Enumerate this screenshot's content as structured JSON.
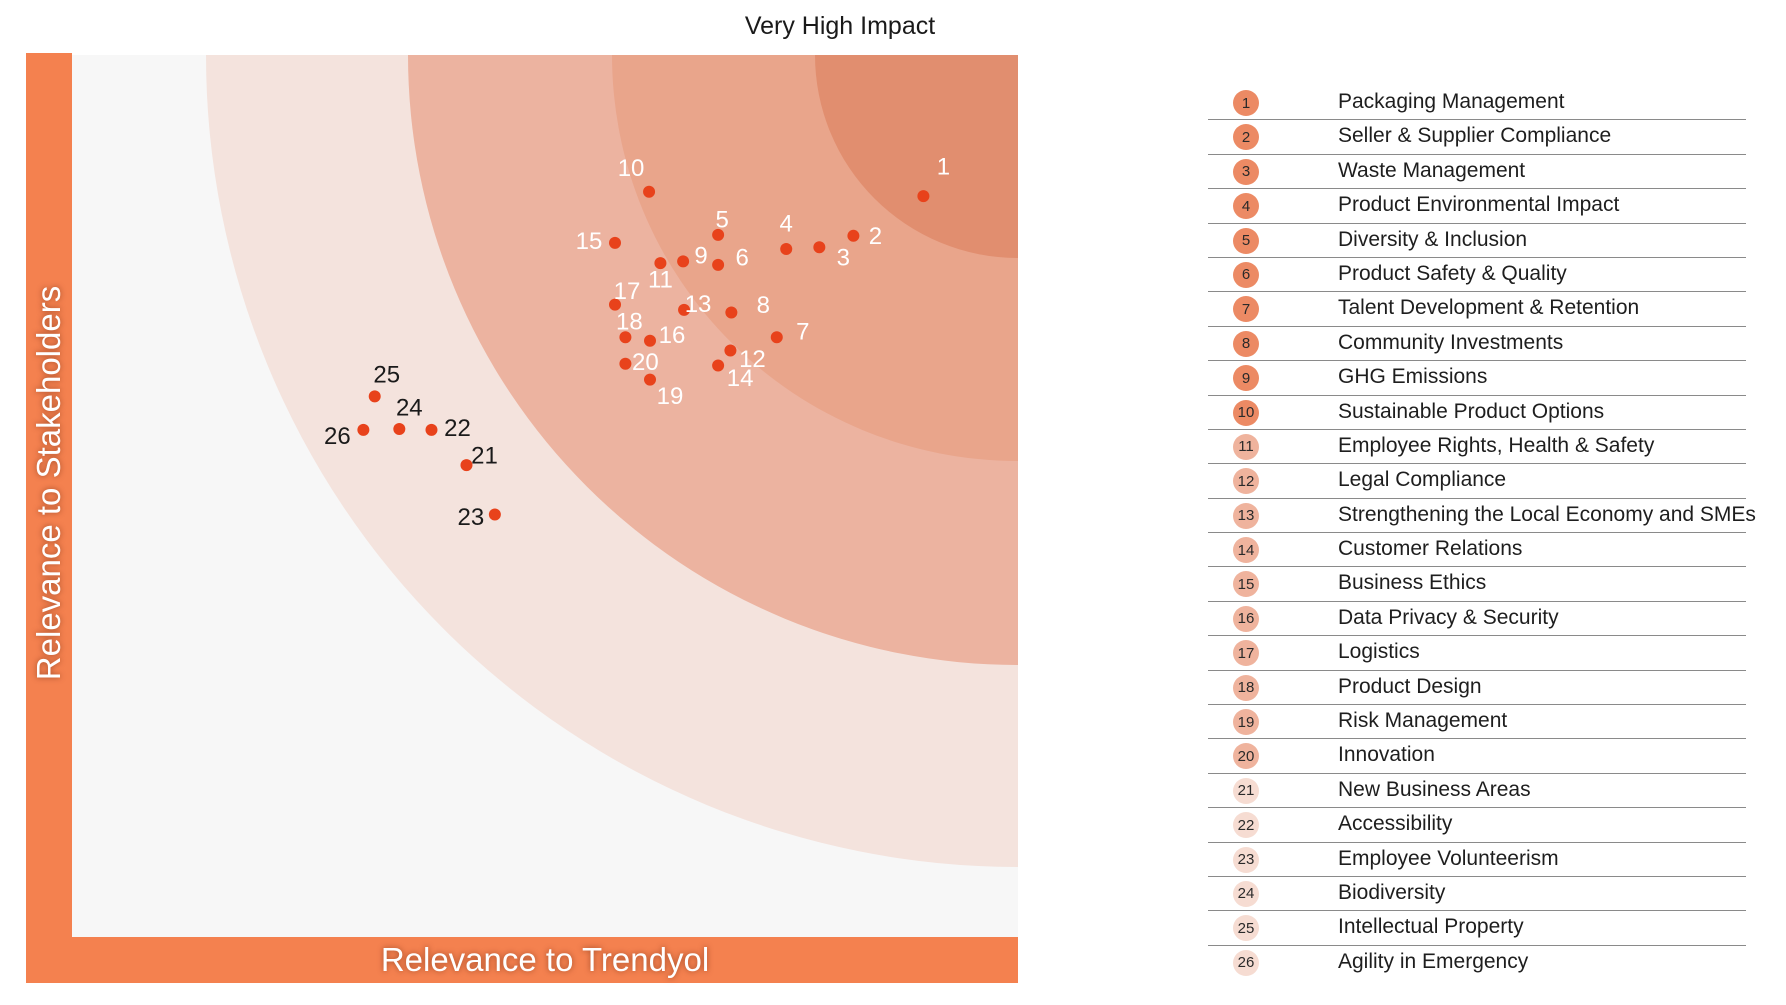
{
  "chart_data": {
    "type": "scatter",
    "title": "",
    "zone_label": "Very High Impact",
    "xlabel": "Relevance to Trendyol",
    "ylabel": "Relevance to Stakeholders",
    "grid": false,
    "colors": {
      "axis_bar": "#f4814f",
      "band_outer": "#f4e3dd",
      "band_mid": "#ecb3a0",
      "band_inner": "#e9a58b",
      "band_core": "#e18e6f",
      "plot_bg": "#f7f7f7",
      "point": "#e8421b"
    },
    "points": [
      {
        "label": "1",
        "x": 0.9,
        "y": 0.84
      },
      {
        "label": "2",
        "x": 0.826,
        "y": 0.795
      },
      {
        "label": "3",
        "x": 0.79,
        "y": 0.782
      },
      {
        "label": "4",
        "x": 0.755,
        "y": 0.78
      },
      {
        "label": "5",
        "x": 0.683,
        "y": 0.796
      },
      {
        "label": "6",
        "x": 0.683,
        "y": 0.762
      },
      {
        "label": "7",
        "x": 0.745,
        "y": 0.68
      },
      {
        "label": "8",
        "x": 0.697,
        "y": 0.708
      },
      {
        "label": "9",
        "x": 0.646,
        "y": 0.766
      },
      {
        "label": "10",
        "x": 0.61,
        "y": 0.845
      },
      {
        "label": "11",
        "x": 0.622,
        "y": 0.764
      },
      {
        "label": "12",
        "x": 0.696,
        "y": 0.665
      },
      {
        "label": "13",
        "x": 0.647,
        "y": 0.711
      },
      {
        "label": "14",
        "x": 0.683,
        "y": 0.648
      },
      {
        "label": "15",
        "x": 0.574,
        "y": 0.787
      },
      {
        "label": "16",
        "x": 0.611,
        "y": 0.676
      },
      {
        "label": "17",
        "x": 0.574,
        "y": 0.717
      },
      {
        "label": "18",
        "x": 0.585,
        "y": 0.68
      },
      {
        "label": "19",
        "x": 0.611,
        "y": 0.632
      },
      {
        "label": "20",
        "x": 0.585,
        "y": 0.65
      },
      {
        "label": "21",
        "x": 0.417,
        "y": 0.535
      },
      {
        "label": "22",
        "x": 0.38,
        "y": 0.575
      },
      {
        "label": "23",
        "x": 0.447,
        "y": 0.479
      },
      {
        "label": "24",
        "x": 0.346,
        "y": 0.576
      },
      {
        "label": "25",
        "x": 0.32,
        "y": 0.613
      },
      {
        "label": "26",
        "x": 0.308,
        "y": 0.575
      }
    ]
  },
  "legend": [
    {
      "num": "1",
      "label": "Packaging  Management"
    },
    {
      "num": "2",
      "label": "Seller & Supplier Compliance"
    },
    {
      "num": "3",
      "label": "Waste Management"
    },
    {
      "num": "4",
      "label": "Product Environmental Impact"
    },
    {
      "num": "5",
      "label": "Diversity & Inclusion"
    },
    {
      "num": "6",
      "label": "Product Safety & Quality"
    },
    {
      "num": "7",
      "label": "Talent Development & Retention"
    },
    {
      "num": "8",
      "label": "Community Investments"
    },
    {
      "num": "9",
      "label": "GHG Emissions"
    },
    {
      "num": "10",
      "label": "Sustainable Product Options"
    },
    {
      "num": "11",
      "label": "Employee Rights, Health & Safety"
    },
    {
      "num": "12",
      "label": "Legal Compliance"
    },
    {
      "num": "13",
      "label": "Strengthening the Local Economy and SMEs"
    },
    {
      "num": "14",
      "label": "Customer Relations"
    },
    {
      "num": "15",
      "label": "Business Ethics"
    },
    {
      "num": "16",
      "label": "Data Privacy & Security"
    },
    {
      "num": "17",
      "label": "Logistics"
    },
    {
      "num": "18",
      "label": "Product Design"
    },
    {
      "num": "19",
      "label": "Risk Management"
    },
    {
      "num": "20",
      "label": "Innovation"
    },
    {
      "num": "21",
      "label": "New Business Areas"
    },
    {
      "num": "22",
      "label": "Accessibility"
    },
    {
      "num": "23",
      "label": "Employee Volunteerism"
    },
    {
      "num": "24",
      "label": "Biodiversity"
    },
    {
      "num": "25",
      "label": "Intellectual Property"
    },
    {
      "num": "26",
      "label": "Agility in Emergency"
    }
  ],
  "legend_badge_colors": {
    "strong": "#ec8a64",
    "medium": "#efb39d",
    "light": "#f6dcd2"
  }
}
